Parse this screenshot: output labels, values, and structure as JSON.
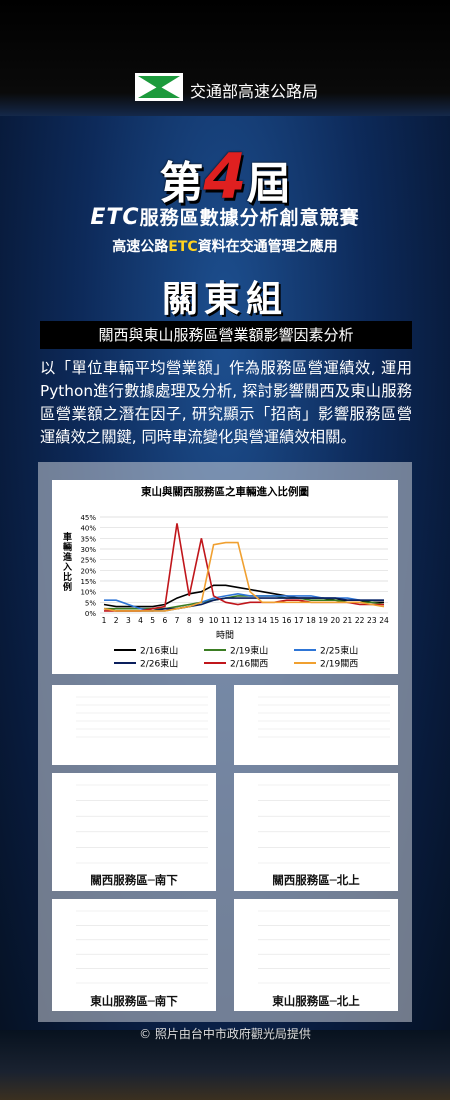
{
  "header": {
    "agency": "交通部高速公路局"
  },
  "edition": [
    "第",
    "4",
    "屆"
  ],
  "competition": [
    "ETC",
    "服務區數據分析創意競賽"
  ],
  "subtitle": [
    "高速公路",
    "ETC",
    "資料在交通管理之應用"
  ],
  "group": "關東組",
  "project_title": "關西與東山服務區營業額影響因素分析",
  "description": "以「單位車輛平均營業額」作為服務區營運績效, 運用Python進行數據處理及分析, 探討影響關西及東山服務區營業額之潛在因子, 研究顯示「招商」影響服務區營運績效之關鍵, 同時車流變化與營運績效相關。",
  "main_chart": {
    "type": "line",
    "title": "東山與關西服務區之車輛進入比例圖",
    "x_label": "時間",
    "y_label": "車輛進入比例",
    "x": [
      1,
      2,
      3,
      4,
      5,
      6,
      7,
      8,
      9,
      10,
      11,
      12,
      13,
      14,
      15,
      16,
      17,
      18,
      19,
      20,
      21,
      22,
      23,
      24
    ],
    "ylim": [
      0,
      45
    ],
    "yticks": [
      {
        "value": 0,
        "label": "0%"
      },
      {
        "value": 5,
        "label": "5%"
      },
      {
        "value": 10,
        "label": "10%"
      },
      {
        "value": 15,
        "label": "15%"
      },
      {
        "value": 20,
        "label": "20%"
      },
      {
        "value": 25,
        "label": "25%"
      },
      {
        "value": 30,
        "label": "30%"
      },
      {
        "value": 35,
        "label": "35%"
      },
      {
        "value": 40,
        "label": "40%"
      },
      {
        "value": 45,
        "label": "45%"
      }
    ],
    "series": [
      {
        "name": "2/16東山",
        "color": "#000000",
        "values": [
          4,
          3,
          3,
          3,
          3,
          4,
          7,
          9,
          10,
          13,
          13,
          12,
          11,
          10,
          9,
          8,
          7,
          7,
          7,
          6,
          6,
          6,
          5,
          5
        ]
      },
      {
        "name": "2/19東山",
        "color": "#3b7d23",
        "values": [
          2,
          2,
          2,
          2,
          2,
          2,
          3,
          4,
          5,
          6,
          7,
          8,
          8,
          8,
          8,
          7,
          7,
          6,
          6,
          6,
          5,
          5,
          5,
          4
        ]
      },
      {
        "name": "2/25東山",
        "color": "#2e75d6",
        "values": [
          6,
          6,
          4,
          2,
          1,
          1,
          2,
          3,
          5,
          7,
          8,
          9,
          8,
          8,
          8,
          8,
          8,
          8,
          7,
          7,
          7,
          6,
          6,
          6
        ]
      },
      {
        "name": "2/26東山",
        "color": "#0a1f5c",
        "values": [
          2,
          1,
          1,
          1,
          1,
          2,
          2,
          3,
          4,
          6,
          7,
          7,
          7,
          7,
          7,
          7,
          7,
          7,
          7,
          7,
          6,
          6,
          6,
          6
        ]
      },
      {
        "name": "2/16關西",
        "color": "#c0161b",
        "values": [
          1,
          1,
          1,
          1,
          2,
          3,
          42,
          8,
          35,
          8,
          5,
          4,
          5,
          5,
          5,
          6,
          6,
          5,
          5,
          5,
          5,
          4,
          4,
          4
        ]
      },
      {
        "name": "2/19關西",
        "color": "#f0a030",
        "values": [
          2,
          1,
          1,
          1,
          1,
          1,
          2,
          3,
          5,
          32,
          33,
          33,
          10,
          5,
          5,
          5,
          5,
          5,
          5,
          5,
          5,
          5,
          4,
          3
        ]
      }
    ]
  },
  "panels": [
    "關西服務區─南下",
    "關西服務區─北上",
    "東山服務區─南下",
    "東山服務區─北上"
  ],
  "credit": "© 照片由台中市政府觀光局提供"
}
